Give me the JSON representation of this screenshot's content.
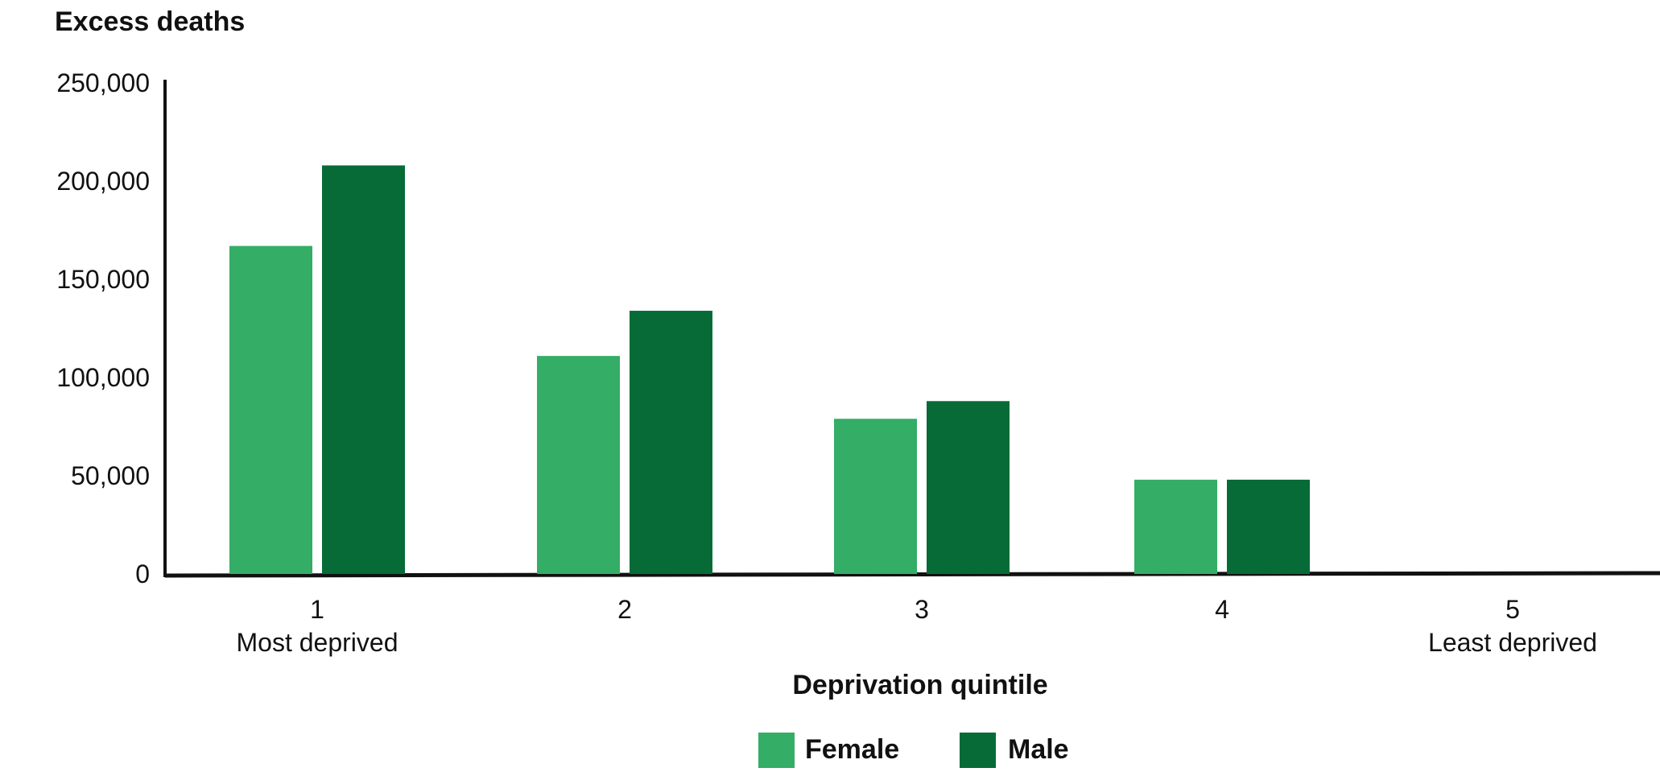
{
  "chart_data": {
    "type": "bar",
    "ylabel": "Excess deaths",
    "xlabel": "Deprivation quintile",
    "categories": [
      [
        "1",
        "Most deprived"
      ],
      [
        "2",
        ""
      ],
      [
        "3",
        ""
      ],
      [
        "4",
        ""
      ],
      [
        "5",
        "Least deprived"
      ]
    ],
    "series": [
      {
        "name": "Female",
        "color": "#34AD66",
        "values": [
          167000,
          111000,
          79000,
          48000,
          0
        ]
      },
      {
        "name": "Male",
        "color": "#066B37",
        "values": [
          208000,
          134000,
          88000,
          48000,
          0
        ]
      }
    ],
    "ylim": [
      0,
      250000
    ],
    "yticks": [
      "0",
      "50,000",
      "100,000",
      "150,000",
      "200,000",
      "250,000"
    ],
    "grid": false,
    "legend": "bottom-center"
  }
}
